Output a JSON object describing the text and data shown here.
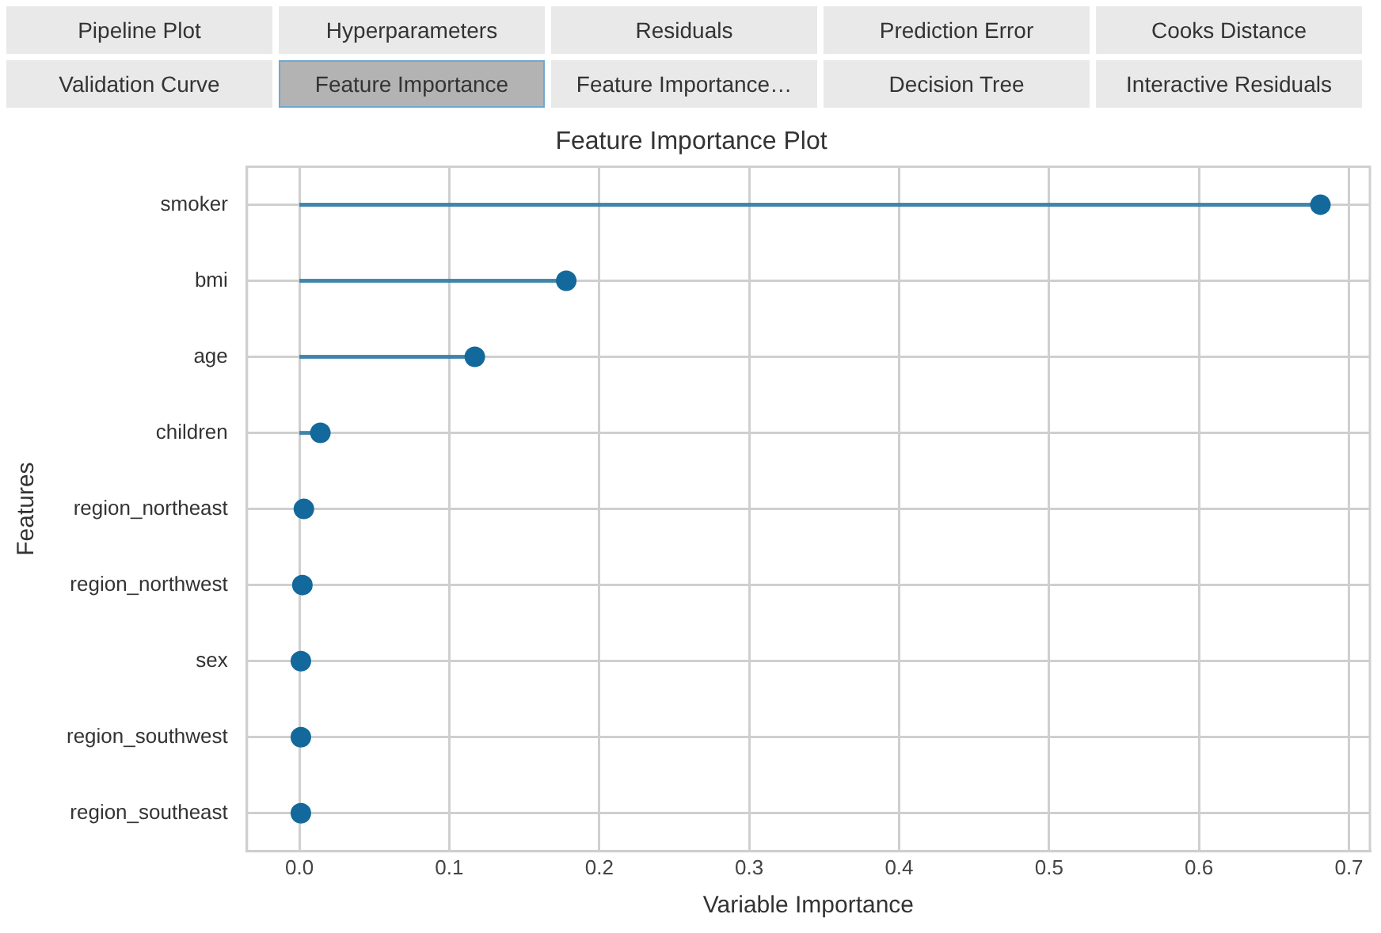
{
  "chart_data": {
    "type": "lollipop",
    "title": "Feature Importance Plot",
    "xlabel": "Variable Importance",
    "ylabel": "Features",
    "orientation": "horizontal",
    "categories": [
      "smoker",
      "bmi",
      "age",
      "children",
      "region_northeast",
      "region_northwest",
      "sex",
      "region_southwest",
      "region_southeast"
    ],
    "values": [
      0.681,
      0.178,
      0.117,
      0.014,
      0.003,
      0.002,
      0.001,
      0.001,
      0.001
    ],
    "color": "#13699b",
    "marker": "circle",
    "xlim": [
      -0.035,
      0.714
    ],
    "xticks": [
      {
        "value": 0,
        "label": "0.0"
      },
      0.1,
      0.2,
      0.3,
      0.4,
      0.5,
      0.6,
      0.7
    ],
    "grid": true,
    "legend": false,
    "annotations": [
      "Pipeline Plot",
      "Hyperparameters",
      "Residuals",
      "Prediction Error",
      "Cooks Distance",
      "Validation Curve",
      "Feature Importance",
      "Feature Importance…",
      "Decision Tree",
      "Interactive Residuals"
    ]
  }
}
